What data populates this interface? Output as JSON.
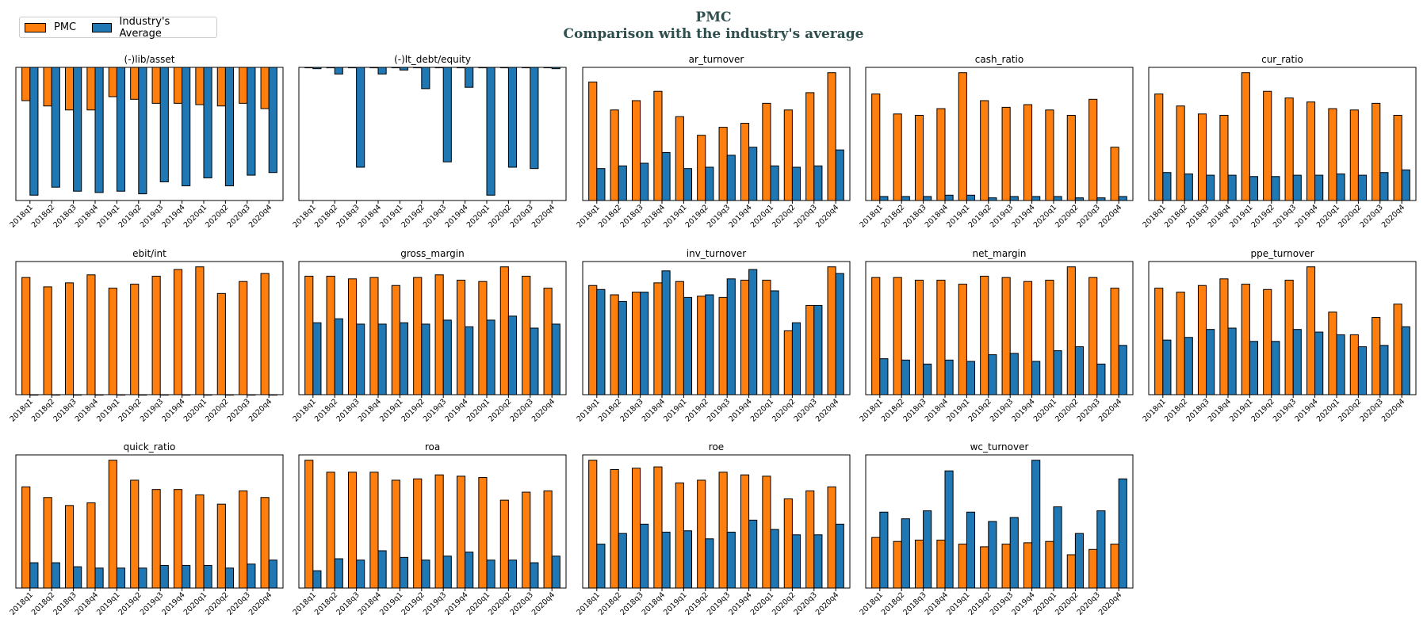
{
  "figure": {
    "title": "PMC",
    "subtitle": "Comparison with the industry's average"
  },
  "legend": [
    {
      "label": "PMC",
      "color": "#ff7f0e"
    },
    {
      "label": "Industry's Average",
      "color": "#1f77b4"
    }
  ],
  "colors": {
    "company": "#ff7f0e",
    "industry": "#1f77b4"
  },
  "chart_data": [
    {
      "type": "bar",
      "title": "(-)lib/asset",
      "categories": [
        "2018q1",
        "2018q2",
        "2018q3",
        "2018q4",
        "2019q1",
        "2019q2",
        "2019q3",
        "2019q4",
        "2020q1",
        "2020q2",
        "2020q3",
        "2020q4"
      ],
      "series": [
        {
          "name": "PMC",
          "values": [
            -0.25,
            -0.29,
            -0.32,
            -0.32,
            -0.22,
            -0.24,
            -0.27,
            -0.27,
            -0.28,
            -0.29,
            -0.27,
            -0.31
          ]
        },
        {
          "name": "Industry's Average",
          "values": [
            -0.96,
            -0.9,
            -0.93,
            -0.94,
            -0.93,
            -0.95,
            -0.86,
            -0.89,
            -0.83,
            -0.89,
            -0.81,
            -0.79
          ]
        }
      ],
      "ylim": [
        -1.0,
        0.0
      ]
    },
    {
      "type": "bar",
      "title": "(-)lt_debt/equity",
      "categories": [
        "2018q1",
        "2018q2",
        "2018q3",
        "2018q4",
        "2019q1",
        "2019q2",
        "2019q3",
        "2019q4",
        "2020q1",
        "2020q2",
        "2020q3",
        "2020q4"
      ],
      "series": [
        {
          "name": "PMC",
          "values": [
            0,
            0,
            0,
            0,
            0,
            0,
            0,
            0,
            0,
            0,
            0,
            0
          ]
        },
        {
          "name": "Industry's Average",
          "values": [
            -0.01,
            -0.05,
            -0.75,
            -0.05,
            -0.02,
            -0.16,
            -0.71,
            -0.15,
            -0.96,
            -0.75,
            -0.76,
            -0.01
          ]
        }
      ],
      "ylim": [
        -1.0,
        0.0
      ]
    },
    {
      "type": "bar",
      "title": "ar_turnover",
      "categories": [
        "2018q1",
        "2018q2",
        "2018q3",
        "2018q4",
        "2019q1",
        "2019q2",
        "2019q3",
        "2019q4",
        "2020q1",
        "2020q2",
        "2020q3",
        "2020q4"
      ],
      "series": [
        {
          "name": "PMC",
          "values": [
            0.89,
            0.68,
            0.75,
            0.82,
            0.63,
            0.49,
            0.55,
            0.58,
            0.73,
            0.68,
            0.81,
            0.96
          ]
        },
        {
          "name": "Industry's Average",
          "values": [
            0.24,
            0.26,
            0.28,
            0.36,
            0.24,
            0.25,
            0.34,
            0.4,
            0.26,
            0.25,
            0.26,
            0.38
          ]
        }
      ],
      "ylim": [
        0,
        1.0
      ]
    },
    {
      "type": "bar",
      "title": "cash_ratio",
      "categories": [
        "2018q1",
        "2018q2",
        "2018q3",
        "2018q4",
        "2019q1",
        "2019q2",
        "2019q3",
        "2019q4",
        "2020q1",
        "2020q2",
        "2020q3",
        "2020q4"
      ],
      "series": [
        {
          "name": "PMC",
          "values": [
            0.8,
            0.65,
            0.64,
            0.69,
            0.96,
            0.75,
            0.7,
            0.72,
            0.68,
            0.64,
            0.76,
            0.4
          ]
        },
        {
          "name": "Industry's Average",
          "values": [
            0.03,
            0.03,
            0.03,
            0.04,
            0.04,
            0.02,
            0.03,
            0.03,
            0.03,
            0.02,
            0.02,
            0.03
          ]
        }
      ],
      "ylim": [
        0,
        1.0
      ]
    },
    {
      "type": "bar",
      "title": "cur_ratio",
      "categories": [
        "2018q1",
        "2018q2",
        "2018q3",
        "2018q4",
        "2019q1",
        "2019q2",
        "2019q3",
        "2019q4",
        "2020q1",
        "2020q2",
        "2020q3",
        "2020q4"
      ],
      "series": [
        {
          "name": "PMC",
          "values": [
            0.8,
            0.71,
            0.65,
            0.64,
            0.96,
            0.82,
            0.77,
            0.74,
            0.69,
            0.68,
            0.73,
            0.64
          ]
        },
        {
          "name": "Industry's Average",
          "values": [
            0.21,
            0.2,
            0.19,
            0.19,
            0.18,
            0.18,
            0.19,
            0.19,
            0.2,
            0.19,
            0.21,
            0.23
          ]
        }
      ],
      "ylim": [
        0,
        1.0
      ]
    },
    {
      "type": "bar",
      "title": "ebit/int",
      "categories": [
        "2018q1",
        "2018q2",
        "2018q3",
        "2018q4",
        "2019q1",
        "2019q2",
        "2019q3",
        "2019q4",
        "2020q1",
        "2020q2",
        "2020q3",
        "2020q4"
      ],
      "series": [
        {
          "name": "PMC",
          "values": [
            0.88,
            0.81,
            0.84,
            0.9,
            0.8,
            0.83,
            0.89,
            0.94,
            0.96,
            0.76,
            0.85,
            0.91
          ]
        },
        {
          "name": "Industry's Average",
          "values": [
            0,
            0,
            0,
            0,
            0,
            0,
            0,
            0,
            0,
            0,
            0,
            0
          ]
        }
      ],
      "ylim": [
        0,
        1.0
      ]
    },
    {
      "type": "bar",
      "title": "gross_margin",
      "categories": [
        "2018q1",
        "2018q2",
        "2018q3",
        "2018q4",
        "2019q1",
        "2019q2",
        "2019q3",
        "2019q4",
        "2020q1",
        "2020q2",
        "2020q3",
        "2020q4"
      ],
      "series": [
        {
          "name": "PMC",
          "values": [
            0.89,
            0.89,
            0.87,
            0.88,
            0.82,
            0.88,
            0.9,
            0.86,
            0.85,
            0.96,
            0.89,
            0.8
          ]
        },
        {
          "name": "Industry's Average",
          "values": [
            0.54,
            0.57,
            0.53,
            0.53,
            0.54,
            0.53,
            0.56,
            0.51,
            0.56,
            0.59,
            0.5,
            0.53
          ]
        }
      ],
      "ylim": [
        0,
        1.0
      ]
    },
    {
      "type": "bar",
      "title": "inv_turnover",
      "categories": [
        "2018q1",
        "2018q2",
        "2018q3",
        "2018q4",
        "2019q1",
        "2019q2",
        "2019q3",
        "2019q4",
        "2020q1",
        "2020q2",
        "2020q3",
        "2020q4"
      ],
      "series": [
        {
          "name": "PMC",
          "values": [
            0.82,
            0.75,
            0.77,
            0.84,
            0.85,
            0.74,
            0.73,
            0.86,
            0.86,
            0.48,
            0.67,
            0.96
          ]
        },
        {
          "name": "Industry's Average",
          "values": [
            0.79,
            0.7,
            0.77,
            0.93,
            0.73,
            0.75,
            0.87,
            0.94,
            0.78,
            0.54,
            0.67,
            0.91
          ]
        }
      ],
      "ylim": [
        0,
        1.0
      ]
    },
    {
      "type": "bar",
      "title": "net_margin",
      "categories": [
        "2018q1",
        "2018q2",
        "2018q3",
        "2018q4",
        "2019q1",
        "2019q2",
        "2019q3",
        "2019q4",
        "2020q1",
        "2020q2",
        "2020q3",
        "2020q4"
      ],
      "series": [
        {
          "name": "PMC",
          "values": [
            0.88,
            0.88,
            0.86,
            0.86,
            0.83,
            0.89,
            0.88,
            0.85,
            0.86,
            0.96,
            0.88,
            0.8
          ]
        },
        {
          "name": "Industry's Average",
          "values": [
            0.27,
            0.26,
            0.23,
            0.26,
            0.25,
            0.3,
            0.31,
            0.25,
            0.33,
            0.36,
            0.23,
            0.37
          ]
        }
      ],
      "ylim": [
        0,
        1.0
      ]
    },
    {
      "type": "bar",
      "title": "ppe_turnover",
      "categories": [
        "2018q1",
        "2018q2",
        "2018q3",
        "2018q4",
        "2019q1",
        "2019q2",
        "2019q3",
        "2019q4",
        "2020q1",
        "2020q2",
        "2020q3",
        "2020q4"
      ],
      "series": [
        {
          "name": "PMC",
          "values": [
            0.8,
            0.77,
            0.82,
            0.87,
            0.83,
            0.79,
            0.86,
            0.96,
            0.62,
            0.45,
            0.58,
            0.68
          ]
        },
        {
          "name": "Industry's Average",
          "values": [
            0.41,
            0.43,
            0.49,
            0.5,
            0.4,
            0.4,
            0.49,
            0.47,
            0.45,
            0.36,
            0.37,
            0.51
          ]
        }
      ],
      "ylim": [
        0,
        1.0
      ]
    },
    {
      "type": "bar",
      "title": "quick_ratio",
      "categories": [
        "2018q1",
        "2018q2",
        "2018q3",
        "2018q4",
        "2019q1",
        "2019q2",
        "2019q3",
        "2019q4",
        "2020q1",
        "2020q2",
        "2020q3",
        "2020q4"
      ],
      "series": [
        {
          "name": "PMC",
          "values": [
            0.76,
            0.68,
            0.62,
            0.64,
            0.96,
            0.81,
            0.74,
            0.74,
            0.7,
            0.63,
            0.73,
            0.68
          ]
        },
        {
          "name": "Industry's Average",
          "values": [
            0.19,
            0.19,
            0.16,
            0.15,
            0.15,
            0.15,
            0.17,
            0.17,
            0.17,
            0.15,
            0.18,
            0.21
          ]
        }
      ],
      "ylim": [
        0,
        1.0
      ]
    },
    {
      "type": "bar",
      "title": "roa",
      "categories": [
        "2018q1",
        "2018q2",
        "2018q3",
        "2018q4",
        "2019q1",
        "2019q2",
        "2019q3",
        "2019q4",
        "2020q1",
        "2020q2",
        "2020q3",
        "2020q4"
      ],
      "series": [
        {
          "name": "PMC",
          "values": [
            0.96,
            0.87,
            0.87,
            0.87,
            0.81,
            0.82,
            0.85,
            0.84,
            0.83,
            0.66,
            0.72,
            0.73
          ]
        },
        {
          "name": "Industry's Average",
          "values": [
            0.13,
            0.22,
            0.21,
            0.28,
            0.23,
            0.21,
            0.24,
            0.27,
            0.21,
            0.21,
            0.19,
            0.24
          ]
        }
      ],
      "ylim": [
        0,
        1.0
      ]
    },
    {
      "type": "bar",
      "title": "roe",
      "categories": [
        "2018q1",
        "2018q2",
        "2018q3",
        "2018q4",
        "2019q1",
        "2019q2",
        "2019q3",
        "2019q4",
        "2020q1",
        "2020q2",
        "2020q3",
        "2020q4"
      ],
      "series": [
        {
          "name": "PMC",
          "values": [
            0.96,
            0.89,
            0.9,
            0.91,
            0.79,
            0.81,
            0.87,
            0.85,
            0.84,
            0.67,
            0.73,
            0.76
          ]
        },
        {
          "name": "Industry's Average",
          "values": [
            0.33,
            0.41,
            0.48,
            0.42,
            0.43,
            0.37,
            0.42,
            0.51,
            0.44,
            0.4,
            0.4,
            0.48
          ]
        }
      ],
      "ylim": [
        0,
        1.0
      ]
    },
    {
      "type": "bar",
      "title": "wc_turnover",
      "categories": [
        "2018q1",
        "2018q2",
        "2018q3",
        "2018q4",
        "2019q1",
        "2019q2",
        "2019q3",
        "2019q4",
        "2020q1",
        "2020q2",
        "2020q3",
        "2020q4"
      ],
      "series": [
        {
          "name": "PMC",
          "values": [
            0.38,
            0.35,
            0.36,
            0.36,
            0.33,
            0.31,
            0.33,
            0.34,
            0.35,
            0.25,
            0.29,
            0.33
          ]
        },
        {
          "name": "Industry's Average",
          "values": [
            0.57,
            0.52,
            0.58,
            0.88,
            0.57,
            0.5,
            0.53,
            0.96,
            0.61,
            0.41,
            0.58,
            0.82
          ]
        }
      ],
      "ylim": [
        0,
        1.0
      ]
    }
  ]
}
